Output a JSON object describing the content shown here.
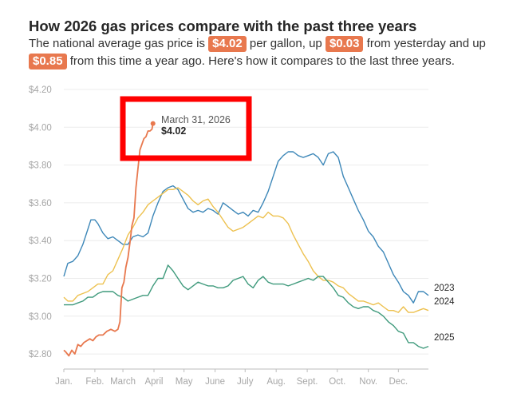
{
  "header": {
    "title": "How 2026 gas prices compare with the past three years",
    "sub_1": "The national average gas price is",
    "sub_2": "per gallon, up",
    "sub_3": "from yesterday and up",
    "sub_4": "from this time a year ago. Here's how it compares to the last three years.",
    "price": "$4.02",
    "change_day": "$0.03",
    "change_year": "$0.85"
  },
  "colors": {
    "2026": "#e8784e",
    "2025": "#3f9a7c",
    "2024": "#edc14f",
    "2023": "#3d87b8",
    "highlight_box": "#ff0000"
  },
  "chart_data": {
    "type": "line",
    "title": "How 2026 gas prices compare with the past three years",
    "xlabel": "",
    "ylabel": "",
    "ylim": [
      2.72,
      4.2
    ],
    "yticks": [
      2.8,
      3.0,
      3.2,
      3.4,
      3.6,
      3.8,
      4.0,
      4.2
    ],
    "ytick_labels": [
      "$2.80",
      "$3.00",
      "$3.20",
      "$3.40",
      "$3.60",
      "$3.80",
      "$4.00",
      "$4.20"
    ],
    "xticks": [
      1,
      32,
      60,
      91,
      121,
      152,
      182,
      213,
      244,
      274,
      305,
      335
    ],
    "xtick_labels": [
      "Jan.",
      "Feb.",
      "March",
      "April",
      "May",
      "June",
      "July",
      "Aug.",
      "Sept.",
      "Oct.",
      "Nov.",
      "Dec."
    ],
    "xlim": [
      1,
      365
    ],
    "annotation": {
      "date": "March 31, 2026",
      "value": "$4.02",
      "x": 90,
      "y": 4.02
    },
    "series": [
      {
        "name": "2023",
        "label": "2023",
        "x": [
          1,
          5,
          10,
          15,
          20,
          25,
          28,
          32,
          35,
          40,
          45,
          50,
          55,
          60,
          65,
          70,
          75,
          80,
          85,
          90,
          95,
          100,
          105,
          110,
          115,
          120,
          125,
          130,
          135,
          140,
          145,
          150,
          155,
          160,
          165,
          170,
          175,
          180,
          185,
          190,
          195,
          200,
          205,
          210,
          215,
          220,
          225,
          230,
          235,
          240,
          245,
          250,
          255,
          260,
          265,
          270,
          275,
          280,
          285,
          290,
          295,
          300,
          305,
          310,
          315,
          320,
          325,
          330,
          335,
          340,
          345,
          350,
          355,
          360,
          365
        ],
        "y": [
          3.21,
          3.28,
          3.29,
          3.32,
          3.38,
          3.46,
          3.51,
          3.51,
          3.49,
          3.44,
          3.41,
          3.42,
          3.4,
          3.38,
          3.38,
          3.42,
          3.43,
          3.42,
          3.44,
          3.53,
          3.6,
          3.66,
          3.68,
          3.69,
          3.67,
          3.62,
          3.57,
          3.55,
          3.56,
          3.55,
          3.57,
          3.56,
          3.54,
          3.6,
          3.58,
          3.56,
          3.54,
          3.55,
          3.53,
          3.56,
          3.55,
          3.6,
          3.66,
          3.74,
          3.82,
          3.85,
          3.87,
          3.87,
          3.85,
          3.84,
          3.85,
          3.86,
          3.84,
          3.8,
          3.86,
          3.87,
          3.84,
          3.74,
          3.68,
          3.62,
          3.56,
          3.51,
          3.45,
          3.42,
          3.37,
          3.34,
          3.28,
          3.22,
          3.18,
          3.13,
          3.11,
          3.07,
          3.13,
          3.13,
          3.11
        ]
      },
      {
        "name": "2024",
        "label": "2024",
        "x": [
          1,
          5,
          10,
          15,
          20,
          25,
          30,
          35,
          40,
          45,
          50,
          55,
          60,
          65,
          70,
          75,
          80,
          85,
          90,
          95,
          100,
          105,
          110,
          115,
          120,
          125,
          130,
          135,
          140,
          145,
          150,
          155,
          160,
          165,
          170,
          175,
          180,
          185,
          190,
          195,
          200,
          205,
          210,
          215,
          220,
          225,
          230,
          235,
          240,
          245,
          250,
          255,
          260,
          265,
          270,
          275,
          280,
          285,
          290,
          295,
          300,
          305,
          310,
          315,
          320,
          325,
          330,
          335,
          340,
          345,
          350,
          355,
          360,
          365
        ],
        "y": [
          3.1,
          3.08,
          3.08,
          3.11,
          3.12,
          3.13,
          3.15,
          3.17,
          3.17,
          3.22,
          3.24,
          3.3,
          3.36,
          3.43,
          3.47,
          3.52,
          3.55,
          3.59,
          3.61,
          3.63,
          3.65,
          3.67,
          3.67,
          3.68,
          3.66,
          3.64,
          3.61,
          3.59,
          3.61,
          3.62,
          3.58,
          3.55,
          3.51,
          3.47,
          3.45,
          3.46,
          3.47,
          3.49,
          3.51,
          3.53,
          3.52,
          3.55,
          3.53,
          3.53,
          3.52,
          3.49,
          3.43,
          3.38,
          3.33,
          3.29,
          3.24,
          3.21,
          3.19,
          3.19,
          3.18,
          3.16,
          3.15,
          3.12,
          3.1,
          3.08,
          3.08,
          3.07,
          3.06,
          3.07,
          3.05,
          3.03,
          3.03,
          3.02,
          3.05,
          3.02,
          3.02,
          3.03,
          3.04,
          3.03
        ]
      },
      {
        "name": "2025",
        "label": "2025",
        "x": [
          1,
          5,
          10,
          15,
          20,
          25,
          30,
          35,
          40,
          45,
          50,
          55,
          60,
          65,
          70,
          75,
          80,
          85,
          90,
          95,
          100,
          105,
          110,
          115,
          120,
          125,
          130,
          135,
          140,
          145,
          150,
          155,
          160,
          165,
          170,
          175,
          180,
          185,
          190,
          195,
          200,
          205,
          210,
          215,
          220,
          225,
          230,
          235,
          240,
          245,
          250,
          255,
          260,
          265,
          270,
          275,
          280,
          285,
          290,
          295,
          300,
          305,
          310,
          315,
          320,
          325,
          330,
          335,
          340,
          345,
          350,
          355,
          360,
          365
        ],
        "y": [
          3.06,
          3.06,
          3.06,
          3.07,
          3.08,
          3.1,
          3.1,
          3.12,
          3.13,
          3.13,
          3.13,
          3.11,
          3.1,
          3.08,
          3.09,
          3.1,
          3.11,
          3.11,
          3.16,
          3.2,
          3.2,
          3.27,
          3.24,
          3.2,
          3.16,
          3.14,
          3.16,
          3.18,
          3.17,
          3.16,
          3.16,
          3.15,
          3.15,
          3.16,
          3.19,
          3.2,
          3.21,
          3.17,
          3.15,
          3.19,
          3.21,
          3.18,
          3.17,
          3.17,
          3.17,
          3.16,
          3.17,
          3.18,
          3.19,
          3.2,
          3.19,
          3.21,
          3.21,
          3.18,
          3.15,
          3.11,
          3.1,
          3.07,
          3.05,
          3.04,
          3.05,
          3.05,
          3.03,
          3.02,
          3.0,
          2.97,
          2.95,
          2.92,
          2.91,
          2.86,
          2.86,
          2.84,
          2.83,
          2.84
        ]
      },
      {
        "name": "2026",
        "label": "",
        "x": [
          1,
          3,
          6,
          9,
          12,
          15,
          18,
          21,
          24,
          27,
          30,
          33,
          36,
          40,
          44,
          48,
          52,
          55,
          57,
          59,
          61,
          63,
          65,
          67,
          69,
          71,
          73,
          75,
          77,
          79,
          81,
          83,
          85,
          87,
          89,
          90
        ],
        "y": [
          2.82,
          2.81,
          2.79,
          2.82,
          2.8,
          2.85,
          2.84,
          2.86,
          2.87,
          2.88,
          2.87,
          2.89,
          2.9,
          2.9,
          2.92,
          2.93,
          2.92,
          2.93,
          2.97,
          3.15,
          3.18,
          3.26,
          3.31,
          3.39,
          3.48,
          3.52,
          3.68,
          3.78,
          3.88,
          3.91,
          3.94,
          3.95,
          3.98,
          3.98,
          3.99,
          4.02
        ]
      }
    ]
  }
}
